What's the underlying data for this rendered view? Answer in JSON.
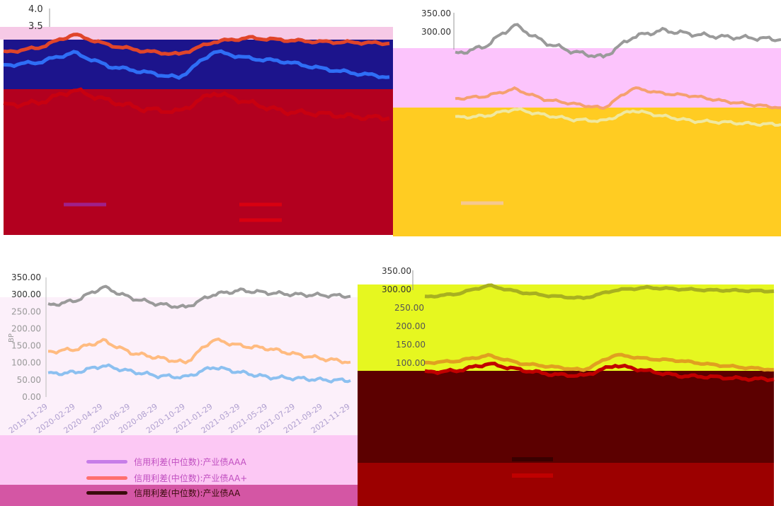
{
  "colors": {
    "tl_blue": "#1c148c",
    "tl_red": "#b3001f",
    "tr_pink": "#fcc4fc",
    "tr_yellow": "#ffcc22",
    "bl_pink": "#fcc8f4",
    "bl_bg": "#fcf0fa",
    "br_yellow": "#e6f720",
    "br_dark": "#5c0000",
    "br_red": "#9c0000",
    "line_gray": "#9a9a9a",
    "line_orange": "#ffbb80",
    "line_blue": "#8cc0f0",
    "legend_violet": "#c77de8",
    "legend_red": "#ff6f6f",
    "legend_dark": "#3a0b0b"
  },
  "panels": {
    "top_left": {
      "axis_top": "4.0",
      "axis_second": "3.5"
    },
    "top_right": {
      "ticks": [
        "350.00",
        "300.00"
      ]
    },
    "bottom_left": {
      "ytitle": "BP",
      "legend": [
        "信用利差(中位数):产业债AAA",
        "信用利差(中位数):产业债AA+",
        "信用利差(中位数):产业债AA"
      ]
    },
    "bottom_right": {
      "ticks": [
        "350.00",
        "300.00",
        "250.00",
        "200.00",
        "150.00",
        "100.00"
      ]
    }
  },
  "chart_data": {
    "type": "line",
    "ylabel": "BP",
    "ylim": [
      0,
      350
    ],
    "yticks": [
      "350.00",
      "300.00",
      "250.00",
      "200.00",
      "150.00",
      "100.00",
      "50.00",
      "0.00"
    ],
    "categories": [
      "2019-11-29",
      "2020-02-29",
      "2020-04-29",
      "2020-06-29",
      "2020-08-29",
      "2020-10-29",
      "2021-01-29",
      "2021-03-29",
      "2021-05-29",
      "2021-07-29",
      "2021-09-29",
      "2021-11-29"
    ],
    "series": [
      {
        "name": "信用利差(中位数):产业债AAA",
        "values": [
          68,
          72,
          92,
          75,
          62,
          58,
          88,
          72,
          58,
          55,
          50,
          48
        ]
      },
      {
        "name": "信用利差(中位数):产业债AA+",
        "values": [
          132,
          140,
          165,
          130,
          115,
          100,
          168,
          150,
          142,
          125,
          112,
          102
        ]
      },
      {
        "name": "信用利差(中位数):产业债AA",
        "values": [
          268,
          282,
          322,
          290,
          272,
          262,
          300,
          312,
          305,
          300,
          298,
          295
        ]
      }
    ]
  }
}
